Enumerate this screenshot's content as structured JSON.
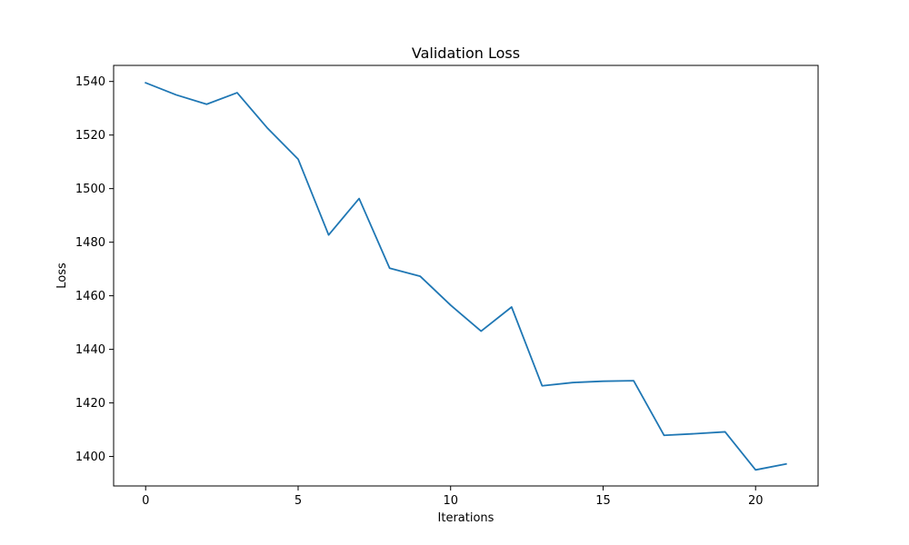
{
  "chart_data": {
    "type": "line",
    "title": "Validation Loss",
    "xlabel": "Iterations",
    "ylabel": "Loss",
    "xlim": [
      -1.05,
      22.05
    ],
    "ylim": [
      1389,
      1546
    ],
    "xticks": [
      0,
      5,
      10,
      15,
      20
    ],
    "yticks": [
      1400,
      1420,
      1440,
      1460,
      1480,
      1500,
      1520,
      1540
    ],
    "grid": false,
    "series": [
      {
        "color": "#1f77b4",
        "x": [
          0,
          1,
          2,
          3,
          4,
          5,
          6,
          7,
          8,
          9,
          10,
          11,
          12,
          13,
          14,
          15,
          16,
          17,
          18,
          19,
          20,
          21
        ],
        "y": [
          1539.5,
          1535.0,
          1531.5,
          1535.8,
          1522.5,
          1511.0,
          1482.7,
          1496.3,
          1470.3,
          1467.3,
          1456.5,
          1446.8,
          1455.8,
          1426.4,
          1427.6,
          1428.1,
          1428.3,
          1407.9,
          1408.5,
          1409.2,
          1395.0,
          1397.2
        ]
      }
    ]
  }
}
